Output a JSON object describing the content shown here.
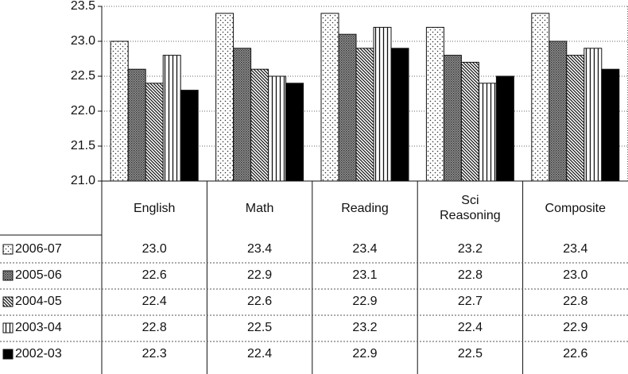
{
  "chart_data": {
    "type": "bar",
    "categories": [
      "English",
      "Math",
      "Reading",
      "Sci Reasoning",
      "Composite"
    ],
    "series": [
      {
        "name": "2006-07",
        "values": [
          23.0,
          23.4,
          23.4,
          23.2,
          23.4
        ],
        "value_labels": [
          "23.0",
          "23.4",
          "23.4",
          "23.2",
          "23.4"
        ]
      },
      {
        "name": "2005-06",
        "values": [
          22.6,
          22.9,
          23.1,
          22.8,
          23.0
        ],
        "value_labels": [
          "22.6",
          "22.9",
          "23.1",
          "22.8",
          "23.0"
        ]
      },
      {
        "name": "2004-05",
        "values": [
          22.4,
          22.6,
          22.9,
          22.7,
          22.8
        ],
        "value_labels": [
          "22.4",
          "22.6",
          "22.9",
          "22.7",
          "22.8"
        ]
      },
      {
        "name": "2003-04",
        "values": [
          22.8,
          22.5,
          23.2,
          22.4,
          22.9
        ],
        "value_labels": [
          "22.8",
          "22.5",
          "23.2",
          "22.4",
          "22.9"
        ]
      },
      {
        "name": "2002-03",
        "values": [
          22.3,
          22.4,
          22.9,
          22.5,
          22.6
        ],
        "value_labels": [
          "22.3",
          "22.4",
          "22.9",
          "22.5",
          "22.6"
        ]
      }
    ],
    "ylim": [
      21,
      23.5
    ],
    "yticks": [
      {
        "value": 21,
        "label": "21.0"
      },
      {
        "value": 21.5,
        "label": "21.5"
      },
      {
        "value": 22,
        "label": "22.0"
      },
      {
        "value": 22.5,
        "label": "22.5"
      },
      {
        "value": 23,
        "label": "23.0"
      },
      {
        "value": 23.5,
        "label": "23.5"
      }
    ],
    "grid": true
  }
}
